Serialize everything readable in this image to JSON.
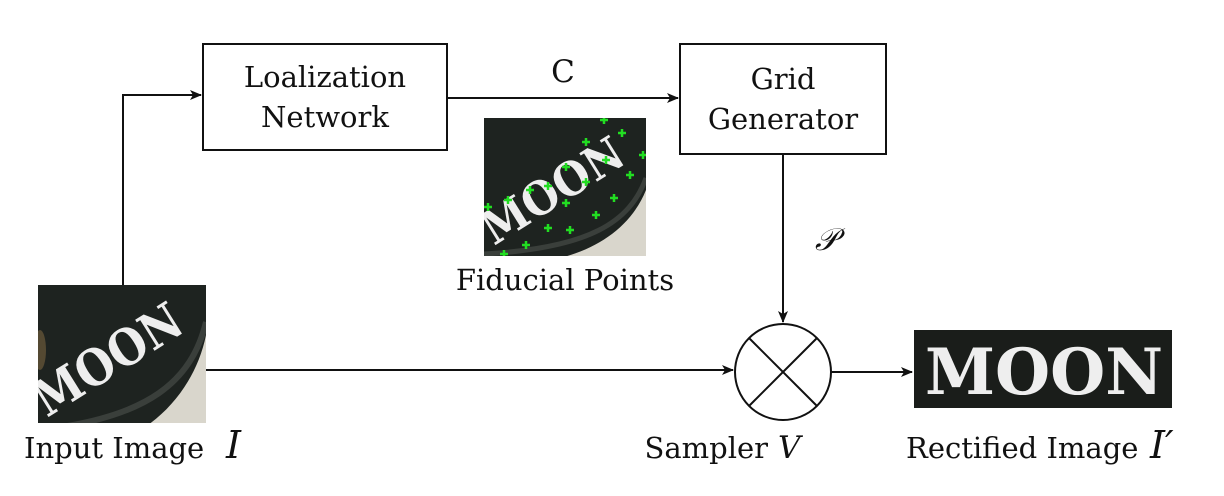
{
  "nodes": {
    "localization": {
      "line1": "Loalization",
      "line2": "Network"
    },
    "grid": {
      "line1": "Grid",
      "line2": "Generator"
    },
    "sampler": {
      "label": "Sampler",
      "symbol": "V"
    }
  },
  "edges": {
    "control_points": "C",
    "sampling_grid": "𝒫"
  },
  "images": {
    "input": {
      "label": "Input Image",
      "symbol": "I",
      "word": "MOON"
    },
    "fiducial": {
      "label": "Fiducial Points",
      "word": "MOON"
    },
    "rectified": {
      "label": "Rectified Image",
      "symbol": "I′",
      "word": "MOON"
    }
  },
  "colors": {
    "stroke": "#111111",
    "photo_dark": "#1e2320",
    "photo_light": "#d9d6cc",
    "fiducial_marker": "#22dd22"
  }
}
